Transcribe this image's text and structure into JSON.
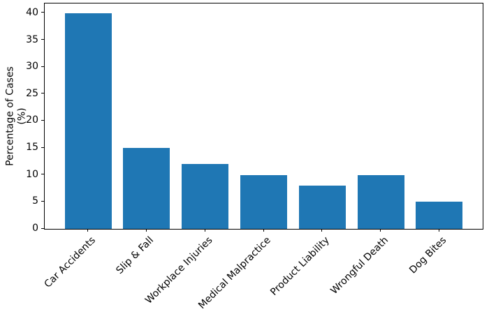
{
  "figure": {
    "background": "#ffffff",
    "spine_color": "#000000",
    "text_color": "#000000"
  },
  "chart_data": {
    "type": "bar",
    "title": "",
    "xlabel": "",
    "ylabel": "Percentage of Cases (%)",
    "categories": [
      "Car Accidents",
      "Slip & Fall",
      "Workplace Injuries",
      "Medical Malpractice",
      "Product Liability",
      "Wrongful Death",
      "Dog Bites"
    ],
    "values": [
      40,
      15,
      12,
      10,
      8,
      10,
      5
    ],
    "yticks": [
      0,
      5,
      10,
      15,
      20,
      25,
      30,
      35,
      40
    ],
    "ylim": [
      0,
      41.8
    ],
    "bar_color": "#1f77b4",
    "bar_width_fraction": 0.8,
    "x_margin_fraction": 0.05,
    "x_tick_rotation_deg": 45,
    "grid": false,
    "legend": "none"
  }
}
